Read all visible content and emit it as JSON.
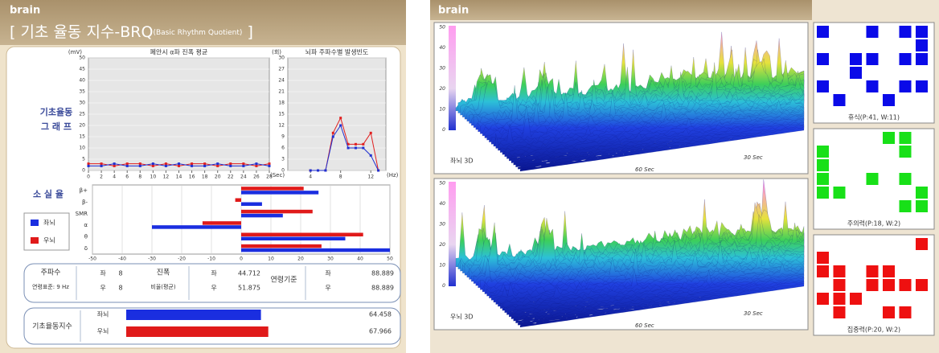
{
  "left_panel": {
    "brand": "brain",
    "title_main": "[ 기초 율동 지수-BRQ",
    "title_note": "(Basic Rhythm Quotient)",
    "title_close": " ]",
    "graph_label": [
      "기초율동",
      "그 래 프"
    ],
    "loss_label": "소 실 율"
  },
  "chart_data": [
    {
      "type": "line",
      "title": "폐안시 α파 진폭 평균",
      "y_unit": "(mV)",
      "x_unit": "(Sec)",
      "x": [
        0,
        2,
        4,
        6,
        8,
        10,
        12,
        14,
        16,
        18,
        20,
        22,
        24,
        26,
        28
      ],
      "series": [
        {
          "color": "#e02020",
          "values": [
            3,
            3,
            2,
            3,
            3,
            2,
            3,
            2,
            3,
            3,
            2,
            3,
            3,
            2,
            3
          ]
        },
        {
          "color": "#2030d0",
          "values": [
            2,
            2,
            3,
            2,
            2,
            3,
            2,
            3,
            2,
            2,
            3,
            2,
            2,
            3,
            2
          ]
        }
      ],
      "xlim": [
        0,
        28
      ],
      "ylim": [
        0,
        50
      ],
      "xticks": [
        0,
        2,
        4,
        6,
        8,
        10,
        12,
        14,
        16,
        18,
        20,
        22,
        24,
        26,
        28
      ],
      "yticks": [
        0,
        5,
        10,
        15,
        20,
        25,
        30,
        35,
        40,
        45,
        50
      ]
    },
    {
      "type": "line",
      "title": "뇌파 주파수별 발생빈도",
      "y_unit": "(회)",
      "x_unit": "(Hz)",
      "x": [
        4,
        5,
        6,
        7,
        8,
        9,
        10,
        11,
        12,
        13
      ],
      "series": [
        {
          "color": "#e02020",
          "values": [
            0,
            0,
            0,
            10,
            14,
            7,
            7,
            7,
            10,
            0
          ]
        },
        {
          "color": "#2030d0",
          "values": [
            0,
            0,
            0,
            9,
            12,
            6,
            6,
            6,
            4,
            0
          ]
        }
      ],
      "xlim": [
        1,
        14
      ],
      "ylim": [
        0,
        30
      ],
      "xticks": [
        4,
        8,
        12
      ],
      "yticks": [
        0,
        3,
        6,
        9,
        12,
        15,
        18,
        21,
        24,
        27,
        30
      ]
    },
    {
      "type": "hbar",
      "categories": [
        "β+",
        "β-",
        "SMR",
        "α",
        "θ",
        "δ"
      ],
      "series": [
        {
          "name": "좌뇌",
          "color": "#1a2ee0",
          "values": [
            26,
            7,
            14,
            -30,
            35,
            50
          ]
        },
        {
          "name": "우뇌",
          "color": "#e01a1a",
          "values": [
            21,
            -2,
            24,
            -13,
            41,
            27
          ]
        }
      ],
      "xlim": [
        -50,
        50
      ],
      "xticks": [
        -50,
        -40,
        -30,
        -20,
        -10,
        0,
        10,
        20,
        30,
        40,
        50
      ]
    }
  ],
  "table": {
    "frequency": {
      "label": "주파수",
      "sub": "연령표준: 9 Hz",
      "left_label": "좌",
      "left": 8,
      "right_label": "우",
      "right": 8
    },
    "amplitude": {
      "label": "진폭",
      "sub": "비율(평균)",
      "left_label": "좌",
      "left": 44.712,
      "right_label": "우",
      "right": 51.875
    },
    "age": {
      "label": "연령기준",
      "left_label": "좌",
      "left": 88.889,
      "right_label": "우",
      "right": 88.889
    }
  },
  "brq_index": {
    "label": "기초율동지수",
    "rows": [
      {
        "name": "좌뇌",
        "value": 64.458,
        "color": "#1a2ee0"
      },
      {
        "name": "우뇌",
        "value": 67.966,
        "color": "#e01a1a"
      }
    ]
  },
  "right_panel": {
    "brand": "brain",
    "axis_ticks": [
      "50",
      "40",
      "30",
      "20",
      "10",
      "0"
    ],
    "depth_labels": [
      "30 Sec",
      "60 Sec"
    ],
    "views": [
      {
        "label": "좌뇌 3D"
      },
      {
        "label": "우뇌 3D"
      }
    ],
    "patterns": [
      {
        "label": "휴식(P:41, W:11)",
        "color": "#0a0ae8"
      },
      {
        "label": "주의력(P:18, W:2)",
        "color": "#18e018"
      },
      {
        "label": "집중력(P:20, W:2)",
        "color": "#ee1010"
      }
    ]
  }
}
